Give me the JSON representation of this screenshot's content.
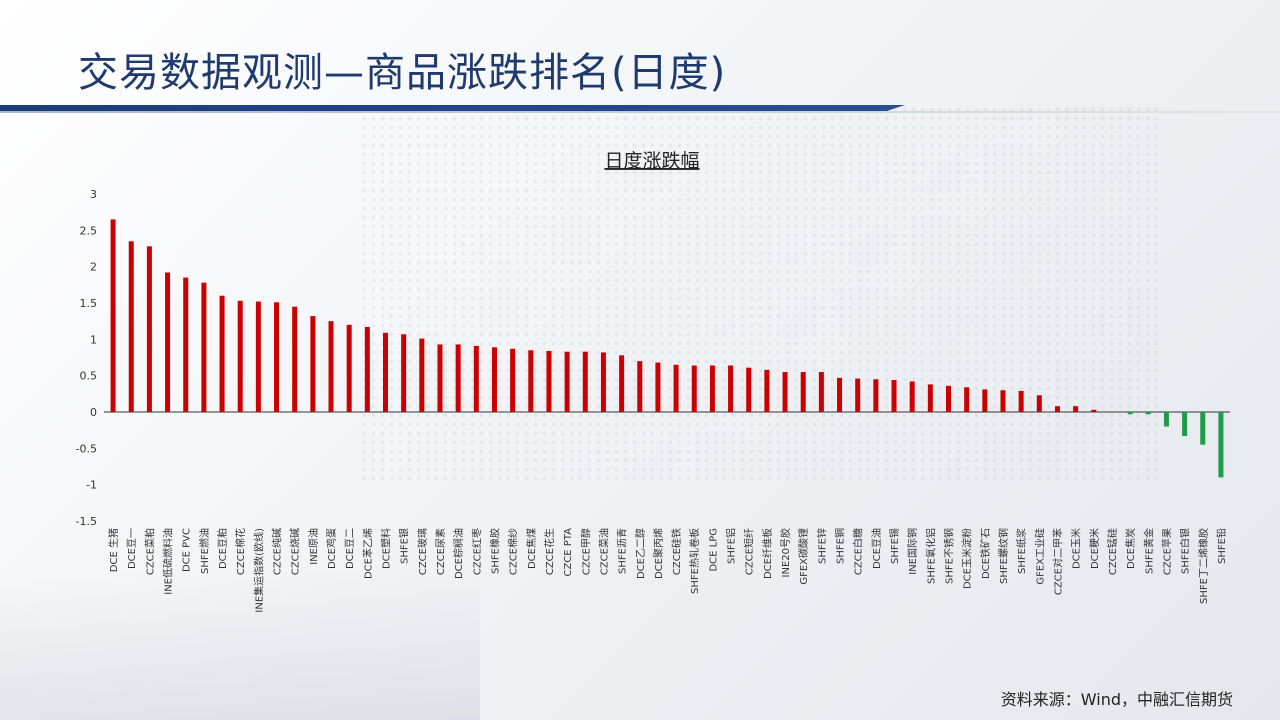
{
  "page": {
    "title": "交易数据观测—商品涨跌排名(日度)",
    "source": "资料来源：Wind，中融汇信期货"
  },
  "colors": {
    "up": "#cc0000",
    "down": "#1f9b4a",
    "title": "#1f3b6e",
    "axis": "#333333"
  },
  "chart_data": {
    "type": "bar",
    "title": "日度涨跌幅",
    "xlabel": "",
    "ylabel": "",
    "ylim": [
      -1.5,
      3
    ],
    "yticks": [
      -1.5,
      -1,
      -0.5,
      0,
      0.5,
      1,
      1.5,
      2,
      2.5,
      3
    ],
    "grid": false,
    "legend": "none",
    "categories": [
      "DCE 生猪",
      "DCE豆一",
      "CZCE菜粕",
      "INE低硫燃料油",
      "DCE PVC",
      "SHFE燃油",
      "DCE豆粕",
      "CZCE棉花",
      "INE集运指数(欧线)",
      "CZCE纯碱",
      "CZCE烧碱",
      "INE原油",
      "DCE鸡蛋",
      "DCE豆二",
      "DCE苯乙烯",
      "DCE塑料",
      "SHFE银",
      "CZCE玻璃",
      "CZCE尿素",
      "DCE棕榈油",
      "CZCE红枣",
      "SHFE橡胶",
      "CZCE棉纱",
      "DCE焦煤",
      "CZCE花生",
      "CZCE PTA",
      "CZCE甲醇",
      "CZCE菜油",
      "SHFE沥青",
      "DCE乙二醇",
      "DCE聚丙烯",
      "CZCE硅铁",
      "SHFE热轧卷板",
      "DCE LPG",
      "SHFE铝",
      "CZCE短纤",
      "DCE纤维板",
      "INE20号胶",
      "GFEX碳酸锂",
      "SHFE锌",
      "SHFE铜",
      "CZCE白糖",
      "DCE豆油",
      "SHFE锡",
      "INE国际铜",
      "SHFE氧化铝",
      "SHFE不锈钢",
      "DCE玉米淀粉",
      "DCE铁矿石",
      "SHFE螺纹钢",
      "SHFE纸浆",
      "GFEX工业硅",
      "CZCE对二甲苯",
      "DCE玉米",
      "DCE粳米",
      "CZCE锰硅",
      "DCE焦炭",
      "SHFE黄金",
      "CZCE苹果",
      "SHFE白银",
      "SHFE丁二烯橡胶",
      "SHFE铅"
    ],
    "values": [
      2.65,
      2.35,
      2.28,
      1.92,
      1.85,
      1.78,
      1.6,
      1.53,
      1.52,
      1.51,
      1.45,
      1.32,
      1.25,
      1.2,
      1.17,
      1.09,
      1.07,
      1.01,
      0.93,
      0.93,
      0.91,
      0.89,
      0.87,
      0.85,
      0.84,
      0.83,
      0.83,
      0.82,
      0.78,
      0.7,
      0.68,
      0.65,
      0.64,
      0.64,
      0.64,
      0.61,
      0.58,
      0.55,
      0.55,
      0.55,
      0.47,
      0.46,
      0.45,
      0.44,
      0.42,
      0.38,
      0.36,
      0.34,
      0.31,
      0.3,
      0.29,
      0.23,
      0.08,
      0.08,
      0.03,
      0.0,
      -0.03,
      -0.03,
      -0.2,
      -0.33,
      -0.45,
      -0.9
    ]
  }
}
